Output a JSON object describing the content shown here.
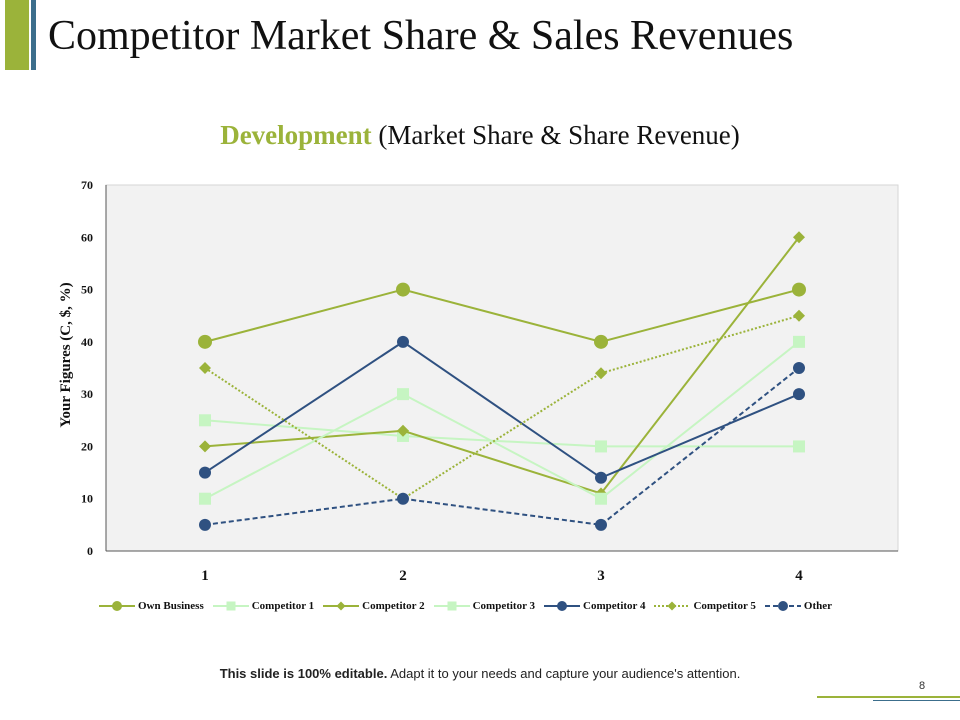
{
  "slide": {
    "title": "Competitor Market Share & Sales Revenues",
    "note_bold": "This slide is 100% editable.",
    "note_rest": " Adapt it to your needs and capture your audience's attention.",
    "page_number": "8",
    "colors": {
      "accent_green": "#9bb33a",
      "accent_teal": "#3c6e8c"
    }
  },
  "chart_heading": {
    "highlight": "Development",
    "rest": " (Market Share & Share Revenue)"
  },
  "chart_data": {
    "type": "line",
    "title": "Development (Market Share & Share Revenue)",
    "xlabel": "",
    "ylabel": "Your Figures (C, $, %)",
    "categories": [
      "1",
      "2",
      "3",
      "4"
    ],
    "ylim": [
      0,
      70
    ],
    "yticks": [
      0,
      10,
      20,
      30,
      40,
      50,
      60,
      70
    ],
    "grid": false,
    "legend_position": "bottom",
    "series": [
      {
        "name": "Own Business",
        "values": [
          40,
          50,
          40,
          50
        ],
        "color": "#9bb33a",
        "marker": "circle",
        "dash": "solid",
        "marker_style": "large"
      },
      {
        "name": "Competitor 1",
        "values": [
          25,
          22,
          20,
          20
        ],
        "color": "#c6f5c2",
        "marker": "square",
        "dash": "solid",
        "marker_style": "normal"
      },
      {
        "name": "Competitor 2",
        "values": [
          20,
          23,
          11,
          60
        ],
        "color": "#9bb33a",
        "marker": "diamond",
        "dash": "solid",
        "marker_style": "normal"
      },
      {
        "name": "Competitor 3",
        "values": [
          10,
          30,
          10,
          40
        ],
        "color": "#c6f5c2",
        "marker": "square",
        "dash": "solid",
        "marker_style": "normal"
      },
      {
        "name": "Competitor 4",
        "values": [
          15,
          40,
          14,
          30
        ],
        "color": "#2f5181",
        "marker": "circle",
        "dash": "solid",
        "marker_style": "normal"
      },
      {
        "name": "Competitor 5",
        "values": [
          35,
          10,
          34,
          45
        ],
        "color": "#9bb33a",
        "marker": "diamond",
        "dash": "dotted",
        "marker_style": "normal"
      },
      {
        "name": "Other",
        "values": [
          5,
          10,
          5,
          35
        ],
        "color": "#2f5181",
        "marker": "circle",
        "dash": "dashed",
        "marker_style": "normal"
      }
    ]
  }
}
